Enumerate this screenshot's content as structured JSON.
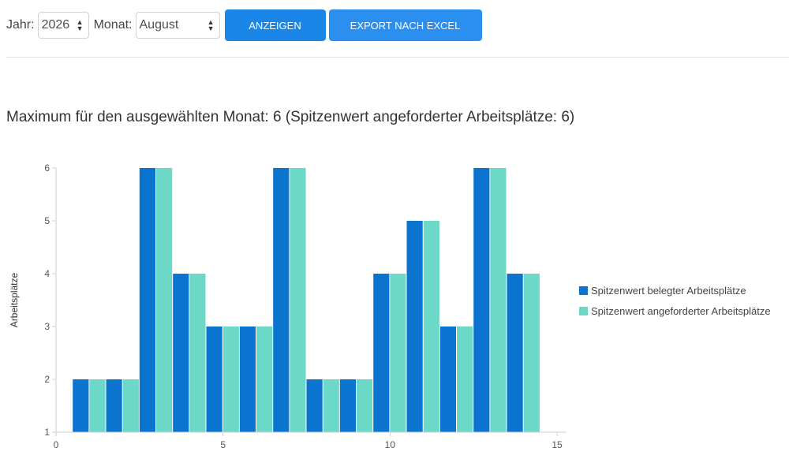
{
  "toolbar": {
    "year_label": "Jahr:",
    "year_value": "2026",
    "month_label": "Monat:",
    "month_value": "August",
    "show_button": "ANZEIGEN",
    "export_button": "EXPORT NACH EXCEL"
  },
  "heading": "Maximum für den ausgewählten Monat: 6 (Spitzenwert angeforderter Arbeitsplätze: 6)",
  "chart_data": {
    "type": "bar",
    "ylabel": "Arbeitsplätze",
    "xlabel": "",
    "x": [
      1,
      2,
      3,
      4,
      5,
      6,
      7,
      8,
      9,
      10,
      11,
      12,
      13,
      14
    ],
    "xlim": [
      0,
      15
    ],
    "ylim": [
      1,
      6
    ],
    "xticks": [
      0,
      5,
      10,
      15
    ],
    "yticks": [
      1,
      2,
      3,
      4,
      5,
      6
    ],
    "grid": false,
    "legend_position": "right",
    "series": [
      {
        "name": "Spitzenwert belegter Arbeitsplätze",
        "color": "#0b74cf",
        "values": [
          2,
          2,
          6,
          4,
          3,
          3,
          6,
          2,
          2,
          4,
          5,
          3,
          6,
          4
        ]
      },
      {
        "name": "Spitzenwert angeforderter Arbeitsplätze",
        "color": "#6cd8c8",
        "values": [
          2,
          2,
          6,
          4,
          3,
          3,
          6,
          2,
          2,
          4,
          5,
          3,
          6,
          4
        ]
      }
    ]
  }
}
